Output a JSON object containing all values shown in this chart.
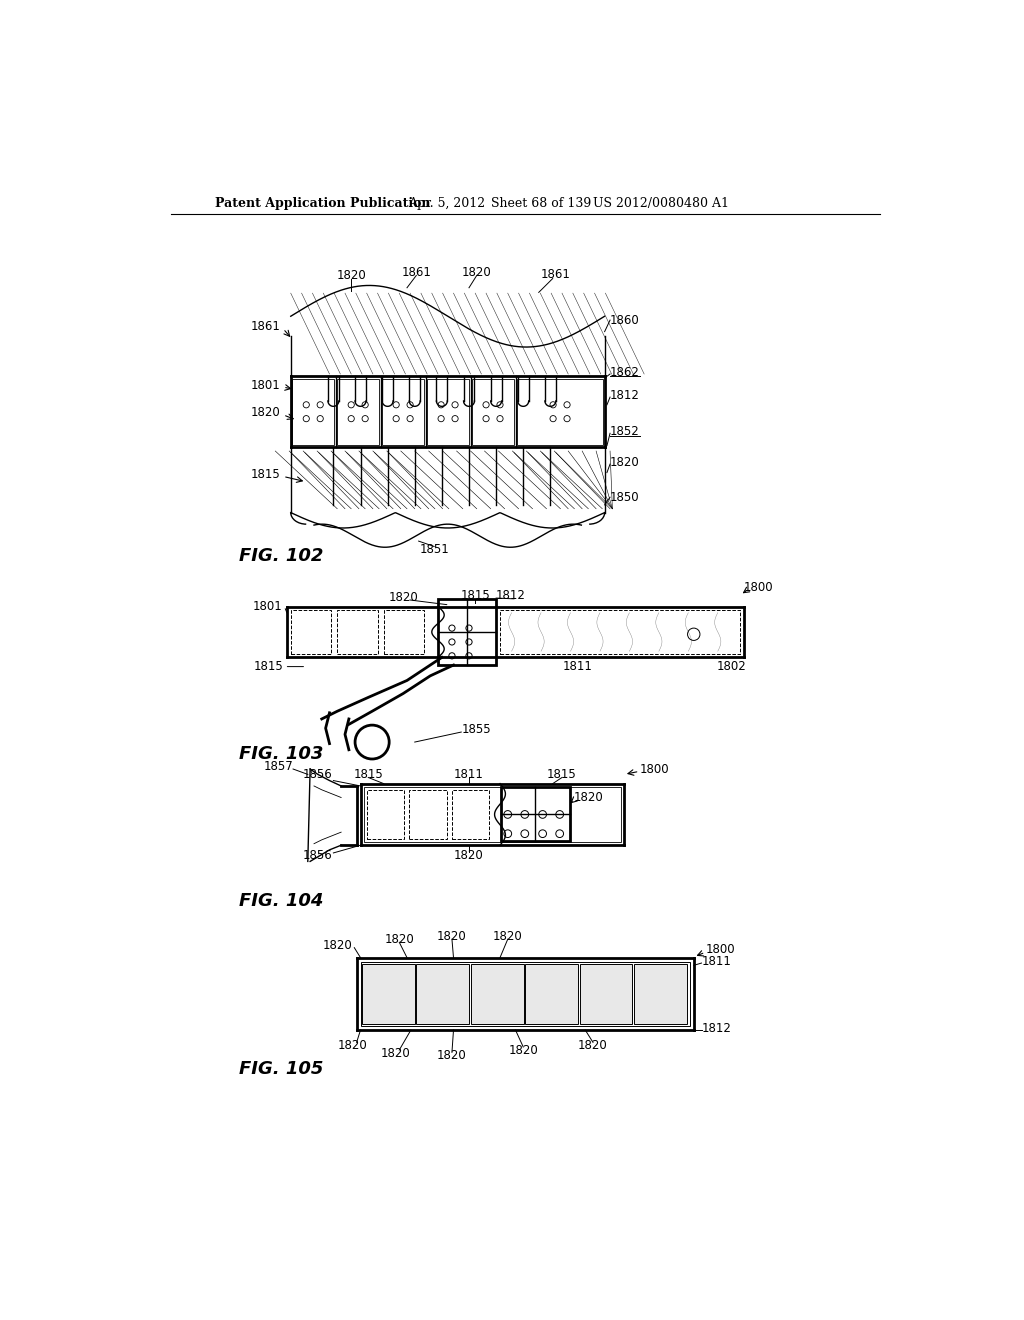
{
  "bg_color": "#ffffff",
  "header_text": "Patent Application Publication",
  "header_date": "Apr. 5, 2012",
  "header_sheet": "Sheet 68 of 139",
  "header_patent": "US 2012/0080480 A1",
  "fig102_label": "FIG. 102",
  "fig103_label": "FIG. 103",
  "fig104_label": "FIG. 104",
  "fig105_label": "FIG. 105"
}
